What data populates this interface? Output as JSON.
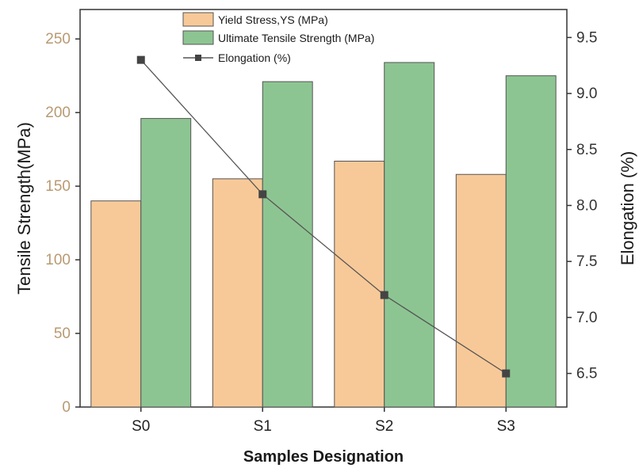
{
  "chart_data": {
    "type": "bar",
    "categories": [
      "S0",
      "S1",
      "S2",
      "S3"
    ],
    "series": [
      {
        "name": "Yield Stress,YS (MPa)",
        "axis": "left",
        "kind": "bar",
        "color": "#f8c998",
        "values": [
          140,
          155,
          167,
          158
        ]
      },
      {
        "name": "Ultimate Tensile Strength (MPa)",
        "axis": "left",
        "kind": "bar",
        "color": "#8dc592",
        "values": [
          196,
          221,
          234,
          225
        ]
      },
      {
        "name": "Elongation (%)",
        "axis": "right",
        "kind": "line",
        "color": "#555555",
        "values": [
          9.3,
          8.1,
          7.2,
          6.5
        ]
      }
    ],
    "xlabel": "Samples Designation",
    "ylabel": "Tensile Strength(MPa)",
    "y2label": "Elongation (%)",
    "ylim": [
      0,
      270
    ],
    "y2lim": [
      6.2,
      9.75
    ],
    "yticks": [
      "0",
      "50",
      "100",
      "150",
      "200",
      "250"
    ],
    "y2ticks": [
      "6.5",
      "7.0",
      "7.5",
      "8.0",
      "8.5",
      "9.0",
      "9.5"
    ],
    "grid": false,
    "legend_position": "top-center"
  }
}
